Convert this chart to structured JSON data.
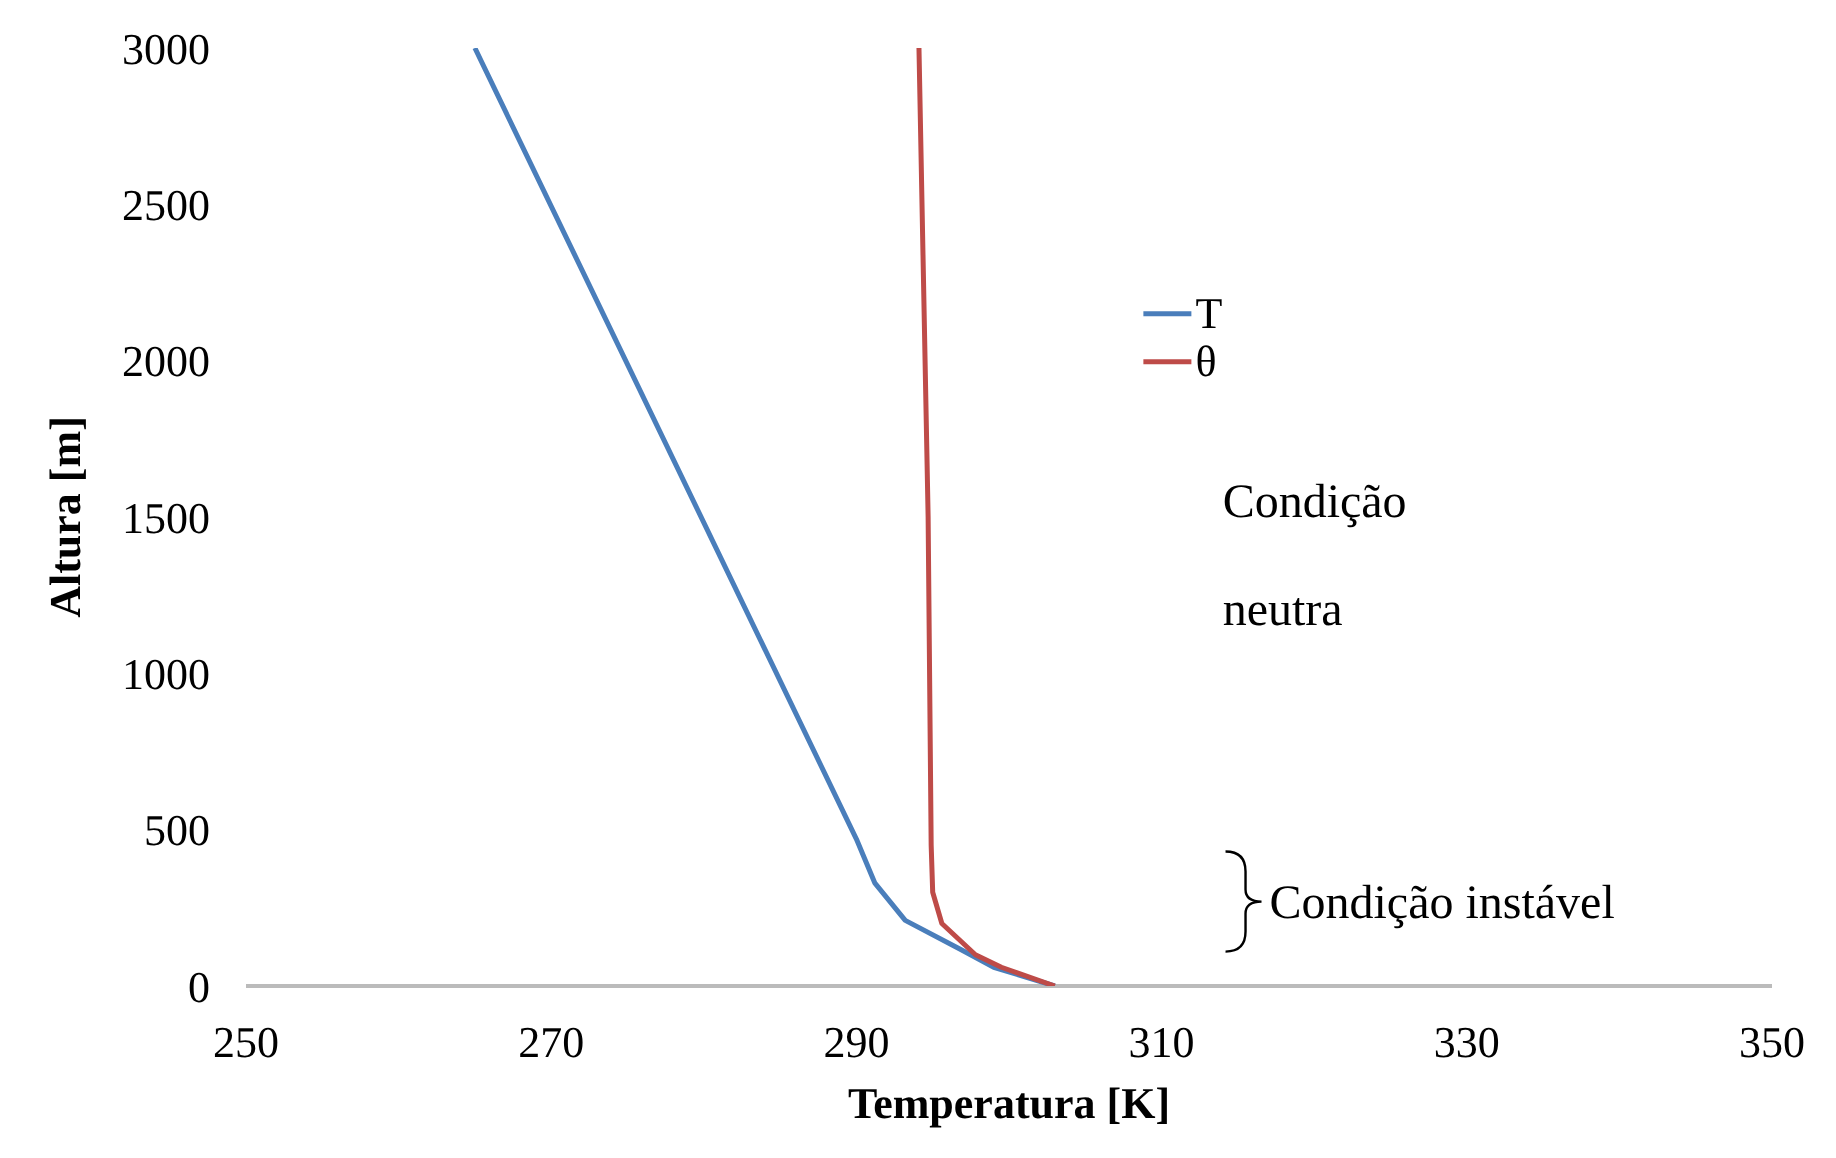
{
  "chart_data": {
    "type": "line",
    "xlabel": "Temperatura [K]",
    "ylabel": "Altura [m]",
    "xlim": [
      250,
      350
    ],
    "xticks": [
      250,
      270,
      290,
      310,
      330,
      350
    ],
    "ylim": [
      0,
      3000
    ],
    "yticks": [
      0,
      500,
      1000,
      1500,
      2000,
      2500,
      3000
    ],
    "grid": false,
    "legend": "top right",
    "marker": "none",
    "line_style": "solid",
    "series": [
      {
        "name": "T",
        "color": "#4a7ebb",
        "x": [
          303,
          299,
          296.9,
          293.2,
          291.2,
          290,
          265
        ],
        "values": [
          0,
          60,
          115,
          210,
          330,
          470,
          3000
        ]
      },
      {
        "name": "θ",
        "color": "#be4b48",
        "x": [
          303,
          299.5,
          297.8,
          295.6,
          295,
          294.9,
          294.7,
          294.1
        ],
        "values": [
          0,
          60,
          100,
          200,
          300,
          450,
          1500,
          3000
        ]
      }
    ],
    "annotations": [
      "Condição neutra",
      "Condição instável"
    ]
  }
}
